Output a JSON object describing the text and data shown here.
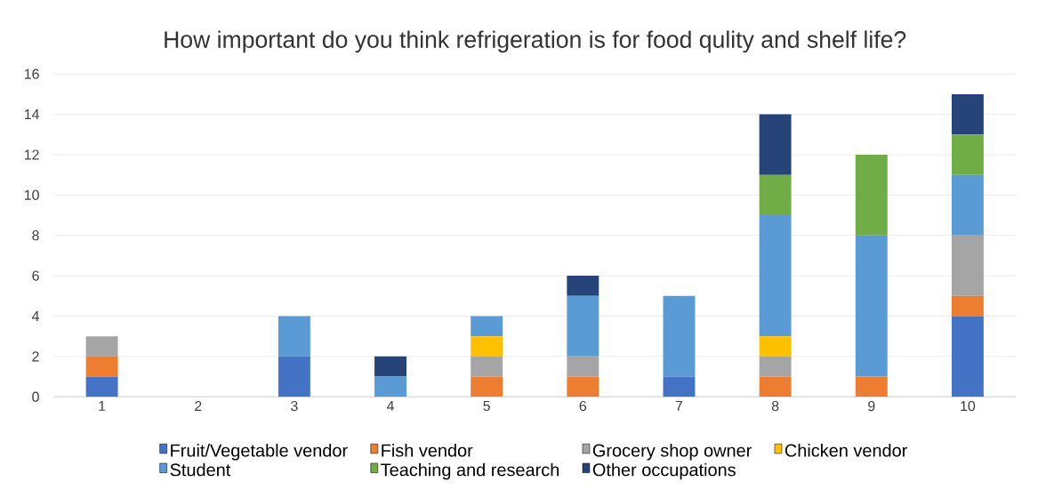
{
  "chart_data": {
    "type": "bar",
    "stacked": true,
    "title": "How important do you think refrigeration is for food qulity and shelf life?",
    "categories": [
      "1",
      "2",
      "3",
      "4",
      "5",
      "6",
      "7",
      "8",
      "9",
      "10"
    ],
    "series": [
      {
        "name": "Fruit/Vegetable vendor",
        "color": "#4472c4",
        "values": [
          1,
          0,
          2,
          0,
          0,
          0,
          1,
          0,
          0,
          4
        ]
      },
      {
        "name": "Fish vendor",
        "color": "#ed7d31",
        "values": [
          1,
          0,
          0,
          0,
          1,
          1,
          0,
          1,
          1,
          1
        ]
      },
      {
        "name": "Grocery shop owner",
        "color": "#a5a5a5",
        "values": [
          1,
          0,
          0,
          0,
          1,
          1,
          0,
          1,
          0,
          3
        ]
      },
      {
        "name": "Chicken vendor",
        "color": "#ffc000",
        "values": [
          0,
          0,
          0,
          0,
          1,
          0,
          0,
          1,
          0,
          0
        ]
      },
      {
        "name": "Student",
        "color": "#5b9bd5",
        "values": [
          0,
          0,
          2,
          1,
          1,
          3,
          4,
          6,
          7,
          3
        ]
      },
      {
        "name": "Teaching and research",
        "color": "#70ad47",
        "values": [
          0,
          0,
          0,
          0,
          0,
          0,
          0,
          2,
          4,
          2
        ]
      },
      {
        "name": "Other occupations",
        "color": "#264478",
        "values": [
          0,
          0,
          0,
          1,
          0,
          1,
          0,
          3,
          0,
          2
        ]
      }
    ],
    "ylim": [
      0,
      16
    ],
    "yticks": [
      0,
      2,
      4,
      6,
      8,
      10,
      12,
      14,
      16
    ],
    "grid": "y",
    "legend": "bottom"
  }
}
